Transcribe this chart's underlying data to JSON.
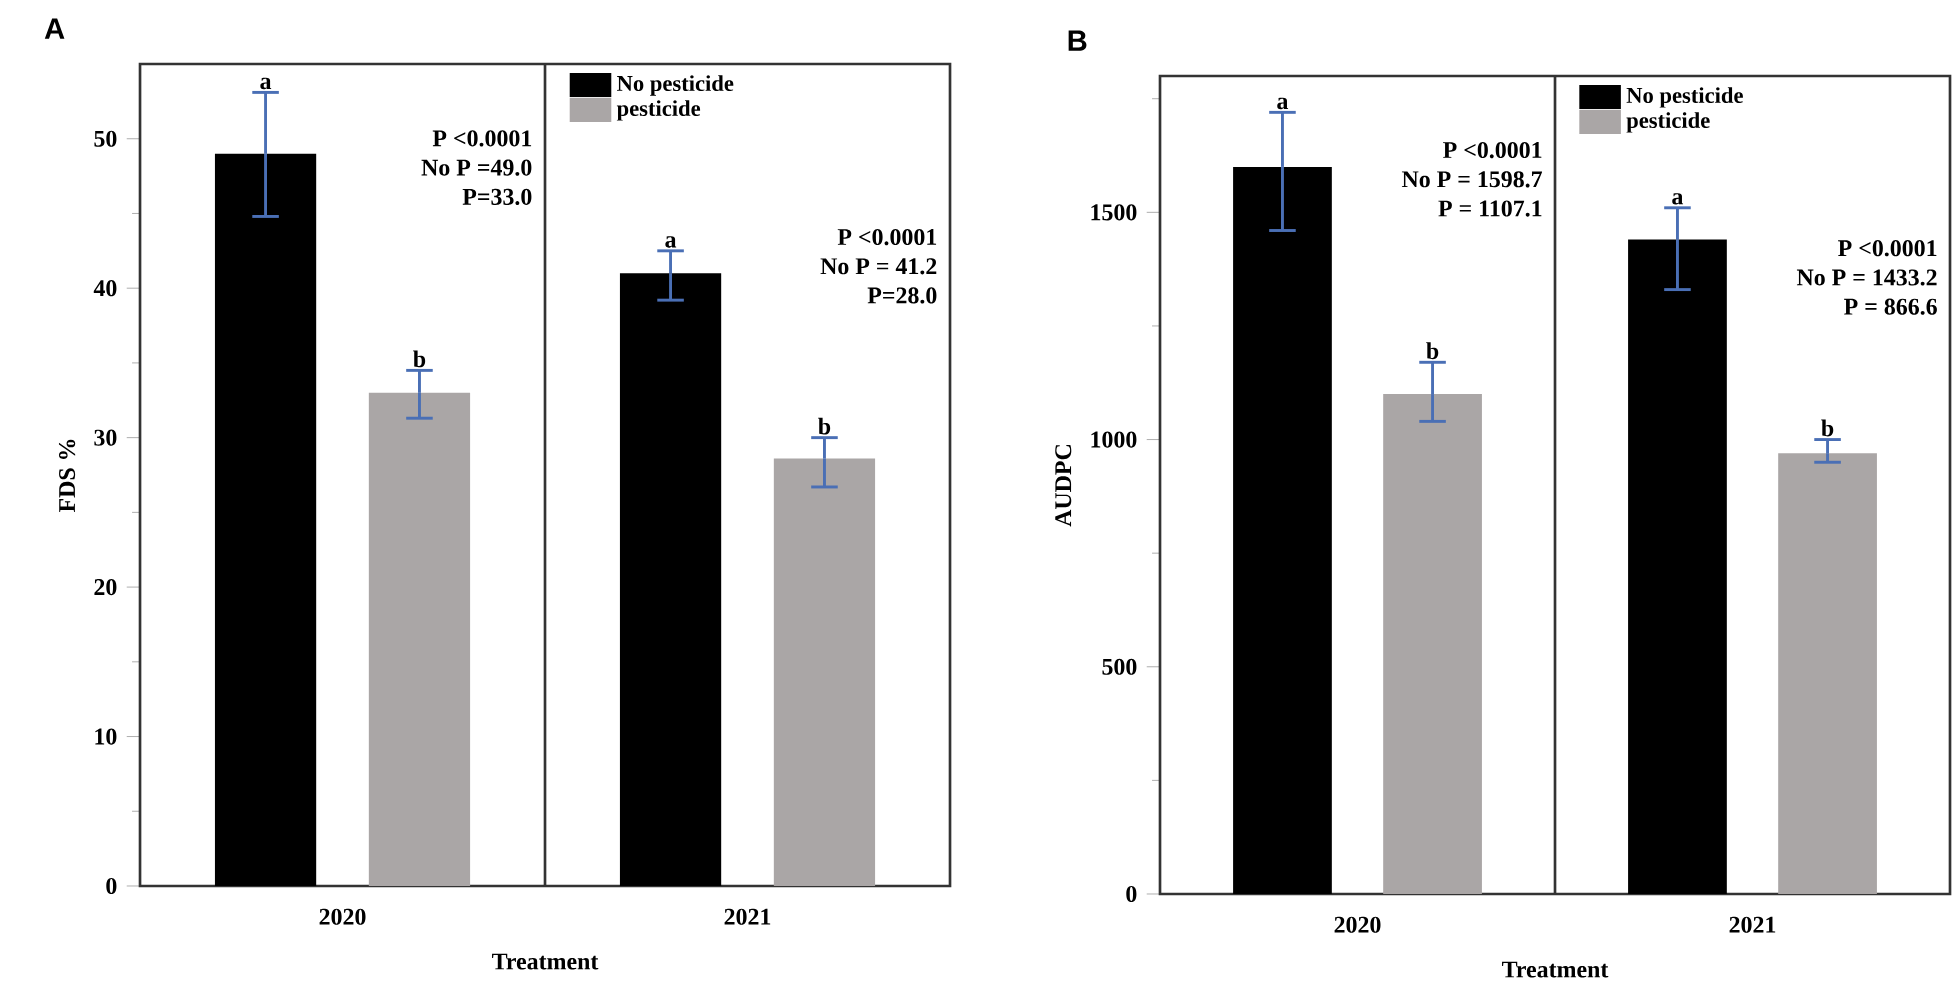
{
  "chart_data": [
    {
      "type": "bar",
      "title": "A",
      "xlabel": "Treatment",
      "ylabel": "FDS %",
      "categories": [
        "2020",
        "2021"
      ],
      "series": [
        {
          "name": "No pesticide",
          "color": "#000000",
          "values": [
            49.0,
            41.0
          ],
          "errors": [
            [
              44.8,
              53.1
            ],
            [
              39.2,
              42.5
            ]
          ],
          "value_labels": [
            "a",
            "a"
          ]
        },
        {
          "name": "pesticide",
          "color": "#aaa6a6",
          "values": [
            33.0,
            28.6
          ],
          "errors": [
            [
              31.3,
              34.5
            ],
            [
              26.7,
              30.0
            ]
          ],
          "value_labels": [
            "b",
            "b"
          ]
        }
      ],
      "ylim": [
        0,
        55
      ],
      "yticks": [
        0,
        {
          "value": 5,
          "label": null
        },
        10,
        {
          "value": 15,
          "label": null
        },
        20,
        {
          "value": 25,
          "label": null
        },
        30,
        {
          "value": 35,
          "label": null
        },
        40,
        {
          "value": 45,
          "label": null
        },
        50
      ],
      "annotations": [
        "P <0.0001",
        "No P =49.0",
        "P=33.0",
        "P <0.0001",
        "No P = 41.2",
        "P=28.0"
      ],
      "legend": "top",
      "grid": false
    },
    {
      "type": "bar",
      "title": "B",
      "xlabel": "Treatment",
      "ylabel": "AUDPC",
      "categories": [
        "2020",
        "2021"
      ],
      "series": [
        {
          "name": "No pesticide",
          "color": "#000000",
          "values": [
            1600,
            1440
          ],
          "errors": [
            [
              1460,
              1720
            ],
            [
              1330,
              1510
            ]
          ],
          "value_labels": [
            "a",
            "a"
          ]
        },
        {
          "name": "pesticide",
          "color": "#aaa6a6",
          "values": [
            1100,
            970
          ],
          "errors": [
            [
              1040,
              1170
            ],
            [
              950,
              1000
            ]
          ],
          "value_labels": [
            "b",
            "b"
          ]
        }
      ],
      "ylim": [
        0,
        1800
      ],
      "yticks": [
        0,
        {
          "value": 250,
          "label": null
        },
        500,
        {
          "value": 750,
          "label": null
        },
        1000,
        {
          "value": 1250,
          "label": null
        },
        1500,
        {
          "value": 1750,
          "label": null
        }
      ],
      "annotations": [
        "P <0.0001",
        "No P = 1598.7",
        "P = 1107.1",
        "P <0.0001",
        "No P = 1433.2",
        "P = 866.6"
      ],
      "legend": "top",
      "grid": false
    }
  ]
}
